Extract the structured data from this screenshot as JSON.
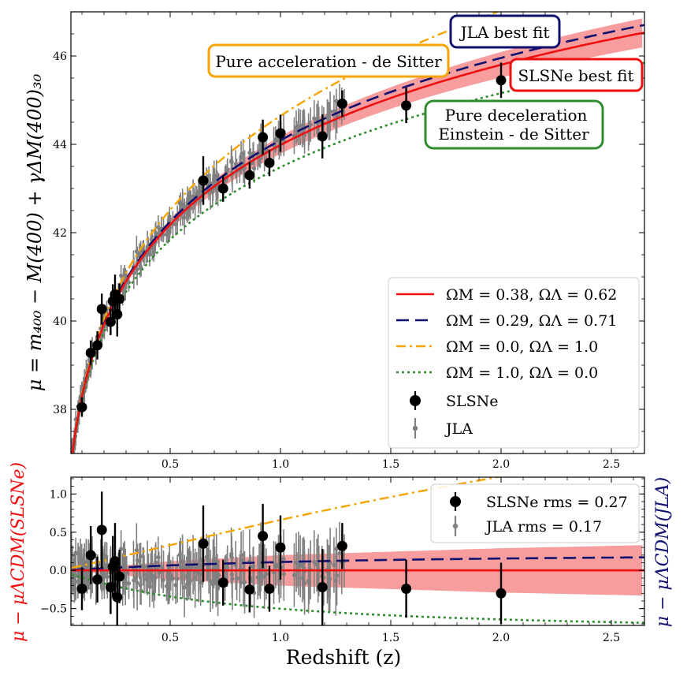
{
  "chart_data": [
    {
      "type": "scatter",
      "panel": "top",
      "ylabel": "μ = m₄₀₀ − M(400) + γΔM(400)₃₀",
      "xlim": [
        0.05,
        2.65
      ],
      "ylim": [
        37.0,
        47.0
      ],
      "xticks": [
        "0.5",
        "1.0",
        "1.5",
        "2.0",
        "2.5"
      ],
      "yticks": [
        "38",
        "40",
        "42",
        "44",
        "46"
      ],
      "models": [
        {
          "name": "ΩM = 0.38, ΩΛ = 0.62",
          "om": 0.38,
          "ol": 0.62,
          "color": "#ee1111",
          "dash": "",
          "width": 2.6
        },
        {
          "name": "ΩM = 0.29, ΩΛ = 0.71",
          "om": 0.29,
          "ol": 0.71,
          "color": "#101070",
          "dash": "16,8",
          "width": 2.6
        },
        {
          "name": "ΩM = 0.0, ΩΛ = 1.0",
          "om": 0.0,
          "ol": 1.0,
          "color": "#f5a400",
          "dash": "12,5,3,5",
          "width": 2.4
        },
        {
          "name": "ΩM = 1.0, ΩΛ = 0.0",
          "om": 1.0,
          "ol": 0.0,
          "color": "#2e8b2e",
          "dash": "3,4",
          "width": 2.6
        }
      ],
      "uncertainty_band": {
        "label": "SLSNe fit uncertainty",
        "color": "#f47c7c",
        "half_width_at_z": [
          [
            0.1,
            0.02
          ],
          [
            0.5,
            0.12
          ],
          [
            1.0,
            0.2
          ],
          [
            2.0,
            0.29
          ],
          [
            2.65,
            0.33
          ]
        ]
      },
      "legend": [
        "ΩM = 0.38, ΩΛ = 0.62",
        "ΩM = 0.29, ΩΛ = 0.71",
        "ΩM = 0.0, ΩΛ = 1.0",
        "ΩM = 1.0, ΩΛ = 0.0",
        "SLSNe",
        "JLA"
      ],
      "annotations": [
        "JLA best fit",
        "Pure acceleration - de Sitter",
        "SLSNe best fit",
        "Pure deceleration",
        "Einstein - de Sitter"
      ],
      "slsne": [
        {
          "z": 0.1,
          "mu": 38.05,
          "err": 0.22
        },
        {
          "z": 0.14,
          "mu": 39.28,
          "err": 0.28
        },
        {
          "z": 0.17,
          "mu": 39.45,
          "err": 0.32
        },
        {
          "z": 0.19,
          "mu": 40.27,
          "err": 0.35
        },
        {
          "z": 0.23,
          "mu": 39.98,
          "err": 0.3
        },
        {
          "z": 0.24,
          "mu": 40.45,
          "err": 0.38
        },
        {
          "z": 0.25,
          "mu": 40.6,
          "err": 0.45
        },
        {
          "z": 0.26,
          "mu": 40.15,
          "err": 0.5
        },
        {
          "z": 0.27,
          "mu": 40.5,
          "err": 0.35
        },
        {
          "z": 0.65,
          "mu": 43.18,
          "err": 0.55
        },
        {
          "z": 0.74,
          "mu": 43.0,
          "err": 0.3
        },
        {
          "z": 0.86,
          "mu": 43.3,
          "err": 0.3
        },
        {
          "z": 0.92,
          "mu": 44.16,
          "err": 0.4
        },
        {
          "z": 0.95,
          "mu": 43.58,
          "err": 0.3
        },
        {
          "z": 1.0,
          "mu": 44.25,
          "err": 0.42
        },
        {
          "z": 1.19,
          "mu": 44.18,
          "err": 0.5
        },
        {
          "z": 1.28,
          "mu": 44.92,
          "err": 0.3
        },
        {
          "z": 1.57,
          "mu": 44.88,
          "err": 0.4
        },
        {
          "z": 2.0,
          "mu": 45.45,
          "err": 0.4
        }
      ],
      "jla": {
        "count": 260,
        "z_range": [
          0.03,
          1.3
        ],
        "scatter_rms": 0.17
      }
    },
    {
      "type": "scatter",
      "panel": "bottom",
      "xlabel": "Redshift (z)",
      "ylabel_left": "μ − μΛCDM(SLSNe)",
      "ylabel_right": "μ − μΛCDM(JLA)",
      "xlim": [
        0.05,
        2.65
      ],
      "ylim": [
        -0.72,
        1.22
      ],
      "xticks": [
        "0.5",
        "1.0",
        "1.5",
        "2.0",
        "2.5"
      ],
      "yticks": [
        "−0.5",
        "0.0",
        "0.5",
        "1.0"
      ],
      "legend": [
        "SLSNe rms = 0.27",
        "JLA rms = 0.17"
      ],
      "slsne_residuals": [
        {
          "z": 0.1,
          "r": -0.24,
          "err": 0.28
        },
        {
          "z": 0.14,
          "r": 0.2,
          "err": 0.38
        },
        {
          "z": 0.17,
          "r": -0.12,
          "err": 0.3
        },
        {
          "z": 0.19,
          "r": 0.53,
          "err": 0.5
        },
        {
          "z": 0.23,
          "r": -0.22,
          "err": 0.35
        },
        {
          "z": 0.24,
          "r": 0.05,
          "err": 0.4
        },
        {
          "z": 0.25,
          "r": 0.12,
          "err": 0.5
        },
        {
          "z": 0.26,
          "r": -0.35,
          "err": 0.45
        },
        {
          "z": 0.27,
          "r": -0.08,
          "err": 0.35
        },
        {
          "z": 0.65,
          "r": 0.35,
          "err": 0.5
        },
        {
          "z": 0.74,
          "r": -0.16,
          "err": 0.3
        },
        {
          "z": 0.86,
          "r": -0.25,
          "err": 0.3
        },
        {
          "z": 0.92,
          "r": 0.45,
          "err": 0.42
        },
        {
          "z": 0.95,
          "r": -0.24,
          "err": 0.3
        },
        {
          "z": 1.0,
          "r": 0.3,
          "err": 0.42
        },
        {
          "z": 1.19,
          "r": -0.22,
          "err": 0.5
        },
        {
          "z": 1.28,
          "r": 0.32,
          "err": 0.3
        },
        {
          "z": 1.57,
          "r": -0.24,
          "err": 0.38
        },
        {
          "z": 2.0,
          "r": -0.3,
          "err": 0.4
        }
      ]
    }
  ]
}
